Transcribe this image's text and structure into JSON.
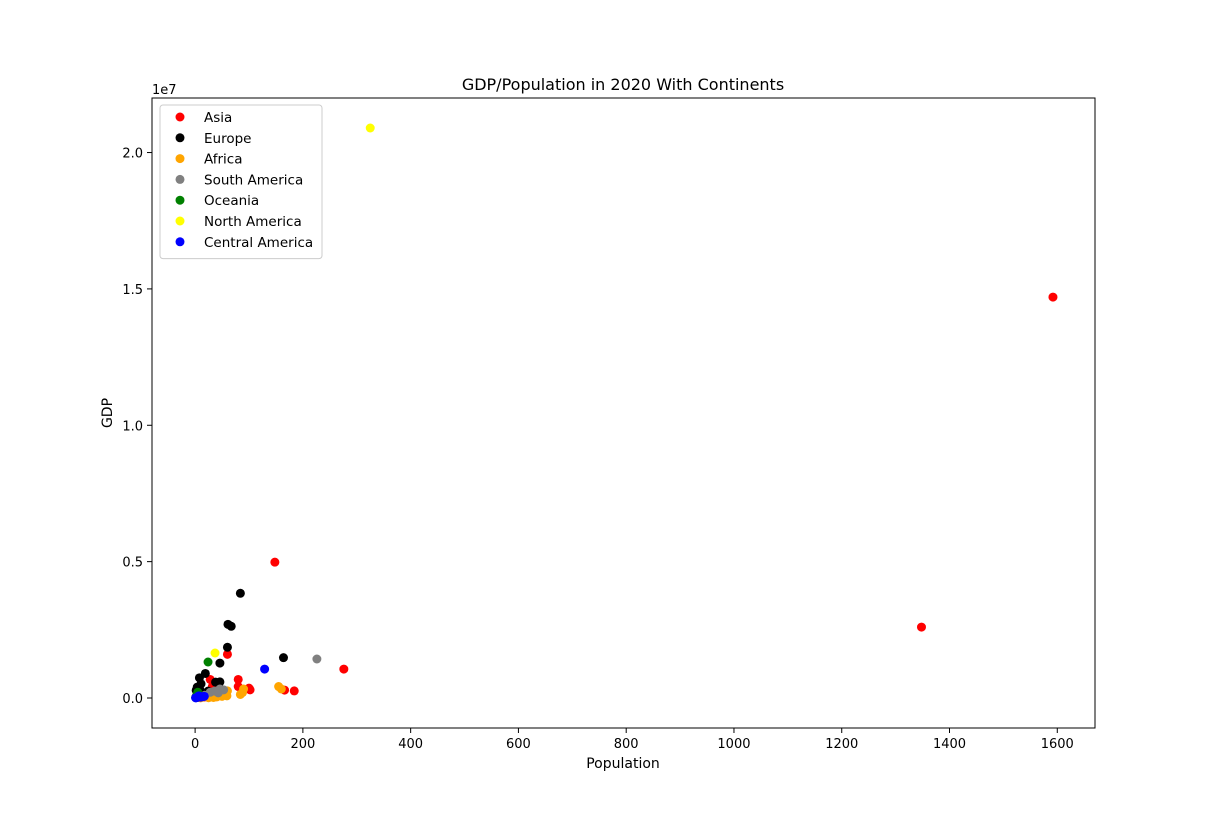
{
  "chart_data": {
    "type": "scatter",
    "title": "GDP/Population in 2020 With Continents",
    "xlabel": "Population",
    "ylabel": "GDP",
    "y_offset_label": "1e7",
    "xlim": [
      -80,
      1670
    ],
    "ylim": [
      -1100000,
      22000000
    ],
    "x_ticks": [
      0,
      200,
      400,
      600,
      800,
      1000,
      1200,
      1400,
      1600
    ],
    "x_tick_labels": [
      "0",
      "200",
      "400",
      "600",
      "800",
      "1000",
      "1200",
      "1400",
      "1600"
    ],
    "y_ticks": [
      0,
      5000000,
      10000000,
      15000000,
      20000000
    ],
    "y_tick_labels": [
      "0.0",
      "0.5",
      "1.0",
      "1.5",
      "2.0"
    ],
    "grid": false,
    "legend_position": "top-left",
    "series": [
      {
        "name": "Asia",
        "color": "#ff0000",
        "points": [
          [
            1592,
            14700000
          ],
          [
            1348,
            2600000
          ],
          [
            148,
            4980000
          ],
          [
            276,
            1060000
          ],
          [
            60,
            1600000
          ],
          [
            28,
            680000
          ],
          [
            80,
            680000
          ],
          [
            80,
            420000
          ],
          [
            102,
            300000
          ],
          [
            100,
            360000
          ],
          [
            166,
            290000
          ],
          [
            184,
            260000
          ],
          [
            32,
            420000
          ],
          [
            20,
            150000
          ],
          [
            8,
            80000
          ],
          [
            16,
            30000
          ],
          [
            5,
            20000
          ],
          [
            40,
            50000
          ]
        ]
      },
      {
        "name": "Europe",
        "color": "#000000",
        "points": [
          [
            84,
            3840000
          ],
          [
            61,
            2700000
          ],
          [
            67,
            2630000
          ],
          [
            60,
            1860000
          ],
          [
            164,
            1480000
          ],
          [
            46,
            1280000
          ],
          [
            19,
            900000
          ],
          [
            8,
            740000
          ],
          [
            11,
            520000
          ],
          [
            46,
            590000
          ],
          [
            38,
            580000
          ],
          [
            4,
            400000
          ],
          [
            2,
            280000
          ],
          [
            6,
            180000
          ],
          [
            10,
            120000
          ],
          [
            17,
            70000
          ],
          [
            5,
            40000
          ],
          [
            1,
            20000
          ],
          [
            24,
            250000
          ],
          [
            9,
            300000
          ]
        ]
      },
      {
        "name": "Africa",
        "color": "#ffa500",
        "points": [
          [
            155,
            420000
          ],
          [
            160,
            330000
          ],
          [
            90,
            330000
          ],
          [
            88,
            200000
          ],
          [
            84,
            130000
          ],
          [
            60,
            260000
          ],
          [
            59,
            80000
          ],
          [
            44,
            100000
          ],
          [
            30,
            150000
          ],
          [
            20,
            60000
          ],
          [
            34,
            20000
          ],
          [
            40,
            40000
          ],
          [
            50,
            60000
          ],
          [
            14,
            30000
          ],
          [
            25,
            10000
          ],
          [
            10,
            5000
          ]
        ]
      },
      {
        "name": "South America",
        "color": "#808080",
        "points": [
          [
            226,
            1430000
          ],
          [
            46,
            330000
          ],
          [
            36,
            250000
          ],
          [
            28,
            210000
          ],
          [
            43,
            190000
          ],
          [
            53,
            300000
          ],
          [
            18,
            100000
          ],
          [
            12,
            40000
          ]
        ]
      },
      {
        "name": "Oceania",
        "color": "#008000",
        "points": [
          [
            24,
            1320000
          ],
          [
            5,
            210000
          ],
          [
            3,
            100000
          ]
        ]
      },
      {
        "name": "North America",
        "color": "#ffff00",
        "points": [
          [
            325,
            20900000
          ],
          [
            37,
            1650000
          ]
        ]
      },
      {
        "name": "Central America",
        "color": "#0000ff",
        "points": [
          [
            129,
            1060000
          ],
          [
            17,
            60000
          ],
          [
            10,
            30000
          ],
          [
            7,
            80000
          ],
          [
            4,
            20000
          ],
          [
            2,
            10000
          ],
          [
            14,
            50000
          ],
          [
            1,
            5000
          ]
        ]
      }
    ]
  }
}
